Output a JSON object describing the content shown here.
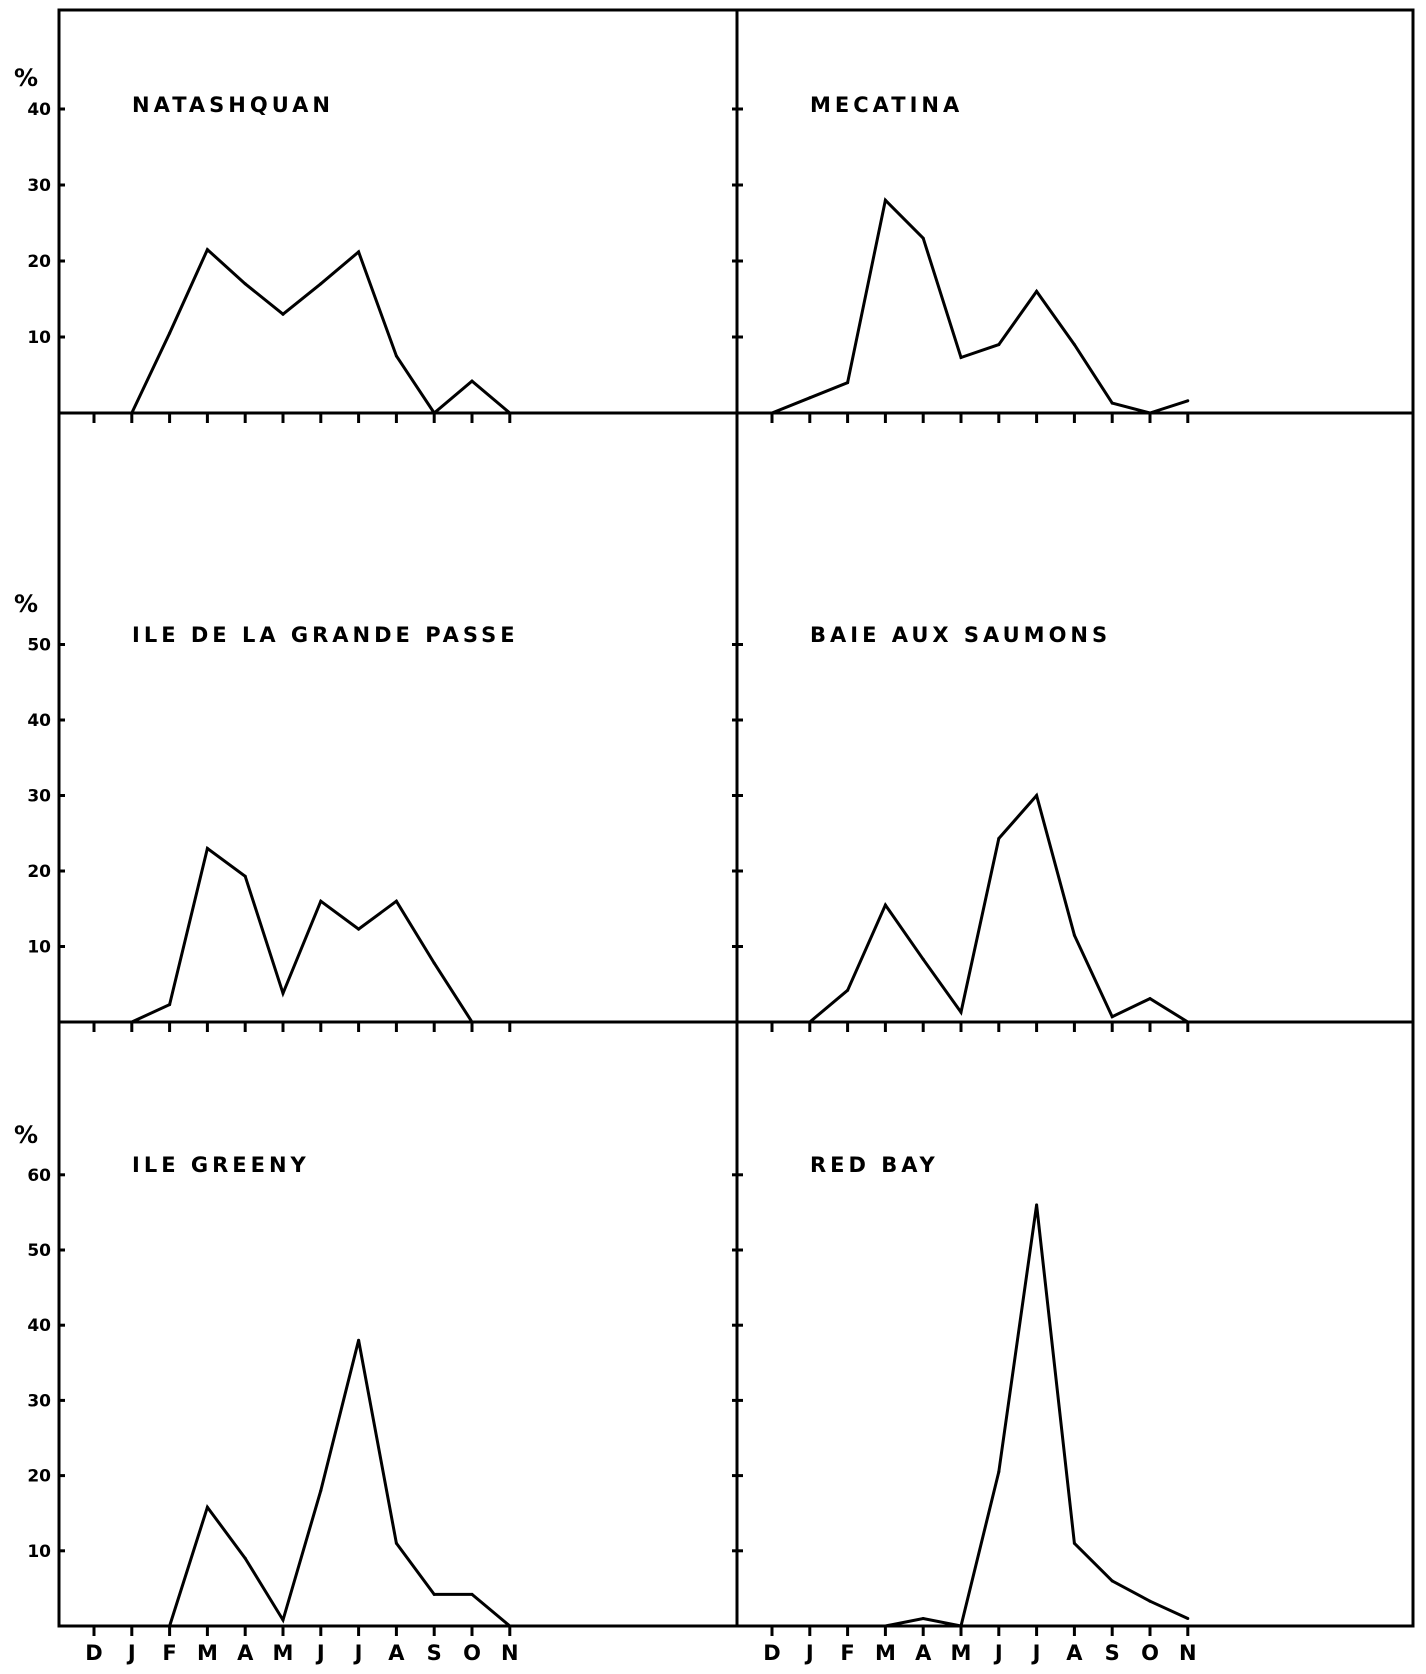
{
  "chart_data": {
    "type": "line",
    "months": [
      "D",
      "J",
      "F",
      "M",
      "A",
      "M",
      "J",
      "J",
      "A",
      "S",
      "O",
      "N"
    ],
    "panels": [
      {
        "title": "NATASHQUAN",
        "ylabel": "%",
        "ylim": [
          0,
          40
        ],
        "yticks": [
          10,
          20,
          30,
          40
        ],
        "ytick_labels": [
          "10",
          "20",
          "30",
          "40"
        ],
        "x": [
          "J",
          "F",
          "M",
          "A",
          "M",
          "J",
          "J",
          "A",
          "S",
          "O",
          "N"
        ],
        "values": [
          0,
          10.5,
          21.5,
          17,
          13,
          17,
          21.2,
          7.5,
          0,
          4.2,
          0
        ]
      },
      {
        "title": "MECATINA",
        "ylabel": "",
        "ylim": [
          0,
          40
        ],
        "yticks": [
          10,
          20,
          30,
          40
        ],
        "ytick_labels": [],
        "x": [
          "D",
          "J",
          "F",
          "M",
          "A",
          "M",
          "J",
          "J",
          "A",
          "S",
          "O",
          "N"
        ],
        "values": [
          0,
          2,
          4,
          28,
          23,
          7.3,
          9,
          16,
          9,
          1.3,
          0,
          1.6
        ]
      },
      {
        "title": "ILE DE LA GRANDE PASSE",
        "ylabel": "%",
        "ylim": [
          0,
          50
        ],
        "yticks": [
          10,
          20,
          30,
          40,
          50
        ],
        "ytick_labels": [
          "10",
          "20",
          "30",
          "40",
          "50"
        ],
        "x": [
          "J",
          "F",
          "M",
          "A",
          "M",
          "J",
          "J",
          "A",
          "S",
          "O"
        ],
        "values": [
          0,
          2.3,
          23,
          19.3,
          3.8,
          16,
          12.3,
          16,
          7.8,
          0
        ]
      },
      {
        "title": "BAIE AUX SAUMONS",
        "ylabel": "",
        "ylim": [
          0,
          50
        ],
        "yticks": [
          10,
          20,
          30,
          40,
          50
        ],
        "ytick_labels": [],
        "x": [
          "J",
          "F",
          "M",
          "A",
          "M",
          "J",
          "J",
          "A",
          "S",
          "O",
          "N"
        ],
        "values": [
          0,
          4.2,
          15.5,
          8.3,
          1.3,
          24.3,
          30,
          11.5,
          0.7,
          3.1,
          0
        ]
      },
      {
        "title": "ILE GREENY",
        "ylabel": "%",
        "ylim": [
          0,
          60
        ],
        "yticks": [
          10,
          20,
          30,
          40,
          50,
          60
        ],
        "ytick_labels": [
          "10",
          "20",
          "30",
          "40",
          "50",
          "60"
        ],
        "x": [
          "F",
          "M",
          "A",
          "M",
          "J",
          "J",
          "A",
          "S",
          "O",
          "N"
        ],
        "values": [
          0,
          15.8,
          9,
          0.8,
          18,
          38,
          11,
          4.2,
          4.2,
          0
        ]
      },
      {
        "title": "RED BAY",
        "ylabel": "",
        "ylim": [
          0,
          60
        ],
        "yticks": [
          10,
          20,
          30,
          40,
          50,
          60
        ],
        "ytick_labels": [],
        "x": [
          "M",
          "A",
          "M",
          "J",
          "J",
          "A",
          "S",
          "O",
          "N"
        ],
        "values": [
          0,
          1,
          0,
          20.5,
          56,
          11,
          6,
          3.3,
          1
        ]
      }
    ]
  }
}
